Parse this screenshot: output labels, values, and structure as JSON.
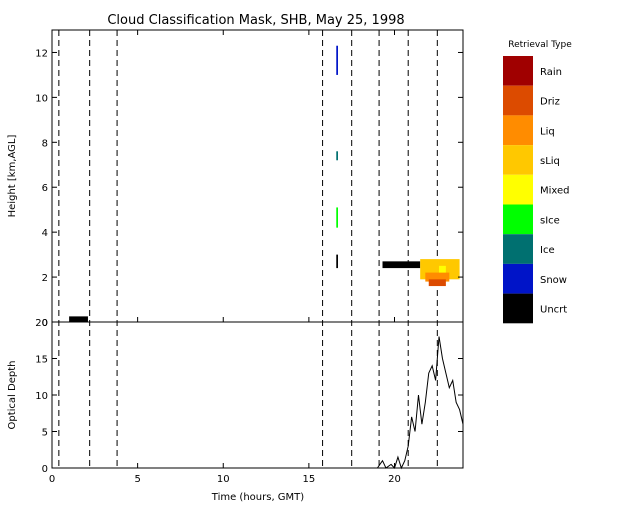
{
  "chart_data": [
    {
      "type": "heatmap",
      "title": "Cloud Classification Mask, SHB, May 25, 1998",
      "ylabel": "Height [km,AGL]",
      "xlim": [
        0,
        24
      ],
      "ylim": [
        0,
        13
      ],
      "xticks": [
        0,
        5,
        10,
        15,
        20
      ],
      "yticks": [
        0,
        2,
        4,
        6,
        8,
        10,
        12
      ],
      "dashed_times": [
        0.4,
        2.2,
        3.8,
        15.8,
        17.5,
        19.1,
        20.8,
        22.5
      ],
      "legend": {
        "title": "Retrieval Type",
        "entries": [
          {
            "label": "Rain",
            "color": "#a00000"
          },
          {
            "label": "Driz",
            "color": "#dc4b00"
          },
          {
            "label": "Liq",
            "color": "#ff8c00"
          },
          {
            "label": "sLiq",
            "color": "#ffc800"
          },
          {
            "label": "Mixed",
            "color": "#ffff00"
          },
          {
            "label": "sIce",
            "color": "#00ff00"
          },
          {
            "label": "Ice",
            "color": "#007070"
          },
          {
            "label": "Snow",
            "color": "#0014c8"
          },
          {
            "label": "Uncrt",
            "color": "#000000"
          }
        ]
      },
      "cloud_regions": [
        {
          "class": "Uncrt",
          "t0": 1.0,
          "t1": 2.1,
          "h0": 0.0,
          "h1": 0.25
        },
        {
          "class": "Snow",
          "t0": 16.6,
          "t1": 16.7,
          "h0": 11.0,
          "h1": 12.3
        },
        {
          "class": "Ice",
          "t0": 16.6,
          "t1": 16.7,
          "h0": 7.2,
          "h1": 7.6
        },
        {
          "class": "sIce",
          "t0": 16.6,
          "t1": 16.7,
          "h0": 4.2,
          "h1": 5.1
        },
        {
          "class": "Uncrt",
          "t0": 16.6,
          "t1": 16.7,
          "h0": 2.4,
          "h1": 3.0
        },
        {
          "class": "Uncrt",
          "t0": 19.3,
          "t1": 21.5,
          "h0": 2.4,
          "h1": 2.7
        },
        {
          "class": "sLiq",
          "t0": 21.5,
          "t1": 23.8,
          "h0": 1.9,
          "h1": 2.8
        },
        {
          "class": "Liq",
          "t0": 21.8,
          "t1": 23.2,
          "h0": 1.8,
          "h1": 2.2
        },
        {
          "class": "Driz",
          "t0": 22.0,
          "t1": 23.0,
          "h0": 1.6,
          "h1": 1.9
        },
        {
          "class": "Mixed",
          "t0": 22.6,
          "t1": 23.0,
          "h0": 2.2,
          "h1": 2.5
        }
      ]
    },
    {
      "type": "line",
      "xlabel": "Time (hours, GMT)",
      "ylabel": "Optical Depth",
      "xlim": [
        0,
        24
      ],
      "ylim": [
        0,
        20
      ],
      "xticks": [
        0,
        5,
        10,
        15,
        20
      ],
      "yticks": [
        0,
        5,
        10,
        15,
        20
      ],
      "dashed_times": [
        0.4,
        2.2,
        3.8,
        15.8,
        17.5,
        19.1,
        20.8,
        22.5
      ],
      "series": [
        {
          "x": [
            19.0,
            19.3,
            19.5,
            19.8,
            20.0,
            20.2,
            20.4,
            20.6,
            20.8,
            21.0,
            21.2,
            21.4,
            21.6,
            21.8,
            22.0,
            22.2,
            22.4,
            22.6,
            22.8,
            23.0,
            23.2,
            23.4,
            23.6,
            23.8,
            24.0
          ],
          "y": [
            0,
            1,
            0,
            0.5,
            0,
            1.5,
            0,
            1,
            3,
            7,
            5,
            10,
            6,
            9,
            13,
            14,
            12,
            18,
            15,
            13,
            11,
            12,
            9,
            8,
            6
          ]
        }
      ]
    }
  ]
}
